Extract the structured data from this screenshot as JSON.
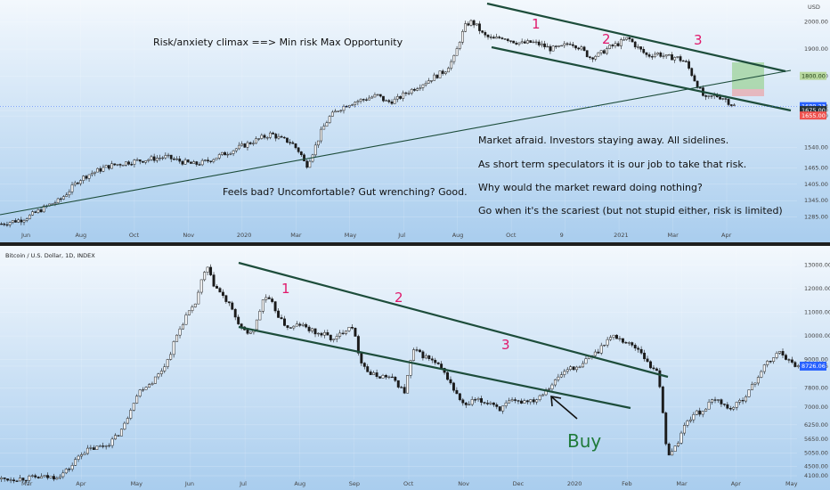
{
  "colors": {
    "candle": "#1a1a1a",
    "trendline": "#1d4d3b",
    "wave_label": "#e0186b",
    "buy_label": "#1f7a3a",
    "badge_blue": "#2962ff",
    "badge_dark": "#263238",
    "badge_red": "#ef5350",
    "badge_green": "#b8d8a0",
    "target_box": "#9fd39a"
  },
  "chart_data": [
    {
      "type": "candlestick",
      "pane": "top",
      "currency_label": "USD",
      "x_tick_labels": [
        "Jun",
        "Aug",
        "Oct",
        "Nov",
        "2020",
        "Mar",
        "May",
        "Jul",
        "Aug",
        "Oct",
        "9",
        "2021",
        "Mar",
        "Apr"
      ],
      "y_tick_labels": [
        "2000.00",
        "1900.00",
        "1800.00",
        "1689.23",
        "1675.00",
        "1655.00",
        "1540.00",
        "1465.00",
        "1405.00",
        "1345.00",
        "1285.00"
      ],
      "ylim": [
        1225,
        2060
      ],
      "price_badges": [
        {
          "label": "1800.00",
          "kind": "green"
        },
        {
          "label": "1689.23",
          "kind": "blue",
          "sub": "09:45:12"
        },
        {
          "label": "1675.00",
          "kind": "dark"
        },
        {
          "label": "1655.00",
          "kind": "red"
        }
      ],
      "close_path": [
        [
          0,
          1260
        ],
        [
          5,
          1268
        ],
        [
          10,
          1275
        ],
        [
          15,
          1290
        ],
        [
          20,
          1310
        ],
        [
          25,
          1330
        ],
        [
          30,
          1345
        ],
        [
          35,
          1380
        ],
        [
          40,
          1420
        ],
        [
          45,
          1440
        ],
        [
          50,
          1455
        ],
        [
          55,
          1470
        ],
        [
          60,
          1478
        ],
        [
          65,
          1485
        ],
        [
          70,
          1490
        ],
        [
          75,
          1495
        ],
        [
          80,
          1500
        ],
        [
          85,
          1505
        ],
        [
          90,
          1495
        ],
        [
          95,
          1485
        ],
        [
          100,
          1478
        ],
        [
          105,
          1485
        ],
        [
          110,
          1500
        ],
        [
          115,
          1515
        ],
        [
          120,
          1530
        ],
        [
          125,
          1545
        ],
        [
          130,
          1560
        ],
        [
          135,
          1575
        ],
        [
          140,
          1590
        ],
        [
          145,
          1570
        ],
        [
          150,
          1560
        ],
        [
          155,
          1520
        ],
        [
          158,
          1470
        ],
        [
          162,
          1530
        ],
        [
          166,
          1600
        ],
        [
          170,
          1650
        ],
        [
          175,
          1680
        ],
        [
          180,
          1700
        ],
        [
          185,
          1710
        ],
        [
          190,
          1720
        ],
        [
          195,
          1730
        ],
        [
          200,
          1705
        ],
        [
          205,
          1715
        ],
        [
          210,
          1740
        ],
        [
          215,
          1760
        ],
        [
          220,
          1780
        ],
        [
          225,
          1800
        ],
        [
          230,
          1820
        ],
        [
          235,
          1870
        ],
        [
          238,
          1940
        ],
        [
          241,
          1990
        ],
        [
          244,
          2000
        ],
        [
          247,
          1980
        ],
        [
          250,
          1950
        ],
        [
          255,
          1935
        ],
        [
          260,
          1945
        ],
        [
          265,
          1930
        ],
        [
          270,
          1920
        ],
        [
          275,
          1925
        ],
        [
          280,
          1915
        ],
        [
          285,
          1900
        ],
        [
          290,
          1905
        ],
        [
          295,
          1925
        ],
        [
          300,
          1905
        ],
        [
          305,
          1870
        ],
        [
          310,
          1880
        ],
        [
          315,
          1905
        ],
        [
          320,
          1920
        ],
        [
          325,
          1940
        ],
        [
          330,
          1905
        ],
        [
          335,
          1875
        ],
        [
          340,
          1885
        ],
        [
          345,
          1870
        ],
        [
          350,
          1870
        ],
        [
          355,
          1850
        ],
        [
          360,
          1780
        ],
        [
          365,
          1715
        ],
        [
          370,
          1730
        ],
        [
          375,
          1720
        ],
        [
          378,
          1700
        ],
        [
          380,
          1692
        ]
      ],
      "wave_labels": [
        "1",
        "2",
        "3"
      ]
    },
    {
      "type": "candlestick",
      "pane": "bottom",
      "legend": "Bitcoin / U.S. Dollar, 1D, INDEX",
      "x_tick_labels": [
        "Mar",
        "Apr",
        "May",
        "Jun",
        "Jul",
        "Aug",
        "Sep",
        "Oct",
        "Nov",
        "Dec",
        "2020",
        "Feb",
        "Mar",
        "Apr",
        "May"
      ],
      "y_tick_labels": [
        "13000.00",
        "12000.00",
        "11000.00",
        "10000.00",
        "9000.00",
        "8726.06",
        "7800.00",
        "7000.00",
        "6250.00",
        "5650.00",
        "5050.00",
        "4500.00",
        "4100.00"
      ],
      "ylim": [
        3950,
        13500
      ],
      "last_price_badge": "8726.06",
      "close_path": [
        [
          0,
          3960
        ],
        [
          10,
          3980
        ],
        [
          20,
          4020
        ],
        [
          30,
          4050
        ],
        [
          35,
          4200
        ],
        [
          40,
          4500
        ],
        [
          45,
          5050
        ],
        [
          50,
          5200
        ],
        [
          55,
          5300
        ],
        [
          60,
          5400
        ],
        [
          65,
          5700
        ],
        [
          70,
          6200
        ],
        [
          75,
          7200
        ],
        [
          80,
          7800
        ],
        [
          85,
          8000
        ],
        [
          90,
          8400
        ],
        [
          95,
          9000
        ],
        [
          100,
          10000
        ],
        [
          105,
          10800
        ],
        [
          110,
          11200
        ],
        [
          115,
          12500
        ],
        [
          118,
          12900
        ],
        [
          120,
          12300
        ],
        [
          125,
          11800
        ],
        [
          130,
          11300
        ],
        [
          135,
          10600
        ],
        [
          140,
          10000
        ],
        [
          145,
          10400
        ],
        [
          150,
          11700
        ],
        [
          155,
          11300
        ],
        [
          160,
          10600
        ],
        [
          165,
          10300
        ],
        [
          170,
          10500
        ],
        [
          175,
          10300
        ],
        [
          180,
          10100
        ],
        [
          185,
          10050
        ],
        [
          190,
          9800
        ],
        [
          195,
          10200
        ],
        [
          200,
          10500
        ],
        [
          205,
          9000
        ],
        [
          210,
          8400
        ],
        [
          215,
          8300
        ],
        [
          220,
          8300
        ],
        [
          225,
          8100
        ],
        [
          230,
          7600
        ],
        [
          235,
          9400
        ],
        [
          240,
          9200
        ],
        [
          245,
          9000
        ],
        [
          250,
          8700
        ],
        [
          255,
          8200
        ],
        [
          260,
          7500
        ],
        [
          265,
          7000
        ],
        [
          270,
          7300
        ],
        [
          275,
          7200
        ],
        [
          280,
          7200
        ],
        [
          285,
          6900
        ],
        [
          290,
          7200
        ],
        [
          295,
          7200
        ],
        [
          300,
          7300
        ],
        [
          305,
          7300
        ],
        [
          310,
          7700
        ],
        [
          315,
          8000
        ],
        [
          320,
          8400
        ],
        [
          325,
          8700
        ],
        [
          330,
          8600
        ],
        [
          335,
          9100
        ],
        [
          340,
          9300
        ],
        [
          345,
          9800
        ],
        [
          350,
          10000
        ],
        [
          355,
          9800
        ],
        [
          360,
          9600
        ],
        [
          365,
          9400
        ],
        [
          370,
          8700
        ],
        [
          375,
          8600
        ],
        [
          380,
          5000
        ],
        [
          385,
          5300
        ],
        [
          390,
          6200
        ],
        [
          395,
          6700
        ],
        [
          400,
          6800
        ],
        [
          405,
          7200
        ],
        [
          410,
          7300
        ],
        [
          415,
          6900
        ],
        [
          420,
          7100
        ],
        [
          425,
          7500
        ],
        [
          430,
          8000
        ],
        [
          435,
          8700
        ],
        [
          440,
          9000
        ],
        [
          445,
          9400
        ],
        [
          450,
          8900
        ],
        [
          455,
          8726
        ]
      ],
      "wave_labels": [
        "1",
        "2",
        "3"
      ],
      "buy_label": "Buy"
    }
  ],
  "annotations": {
    "top_heading": "Risk/anxiety climax ==> Min risk Max Opportunity",
    "feels_bad": "Feels bad? Uncomfortable? Gut wrenching? Good.",
    "market_afraid": "Market afraid. Investors staying away. All sidelines.",
    "speculators": "As short term speculators it is our job to take that risk.",
    "why": "Why would the market reward doing nothing?",
    "go_when": "Go when it's the scariest (but not stupid either, risk is limited)"
  }
}
